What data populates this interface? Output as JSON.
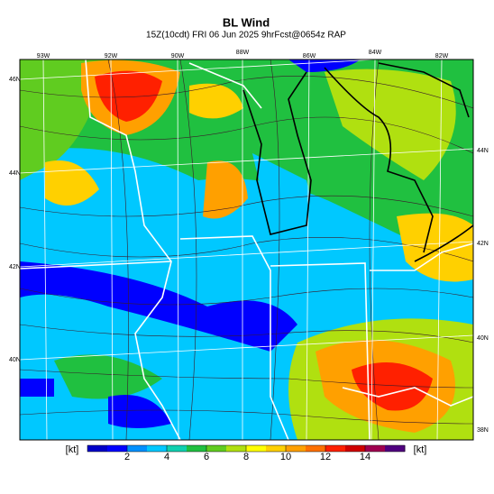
{
  "header": {
    "title": "BL Wind",
    "subtitle": "15Z(10cdt) FRI 06 Jun 2025 9hrFcst@0654z RAP"
  },
  "map": {
    "top_labels": [
      "93W",
      "92W",
      "90W",
      "88W",
      "86W",
      "84W",
      "82W"
    ],
    "left_labels": [
      "46N",
      "44N",
      "42N",
      "40N"
    ],
    "right_labels": [
      "44N",
      "42N",
      "40N",
      "38N"
    ]
  },
  "colorbar": {
    "unit": "[kt]",
    "range": [
      0,
      16
    ],
    "ticks": [
      2,
      4,
      6,
      8,
      10,
      12,
      14
    ],
    "colors": [
      "#0000c8",
      "#0000ff",
      "#0090ff",
      "#00c8ff",
      "#10d0b0",
      "#20c040",
      "#60cc20",
      "#b0e010",
      "#ffff00",
      "#ffd000",
      "#ffa000",
      "#ff7000",
      "#ff2000",
      "#d00000",
      "#a00050",
      "#500080"
    ]
  }
}
